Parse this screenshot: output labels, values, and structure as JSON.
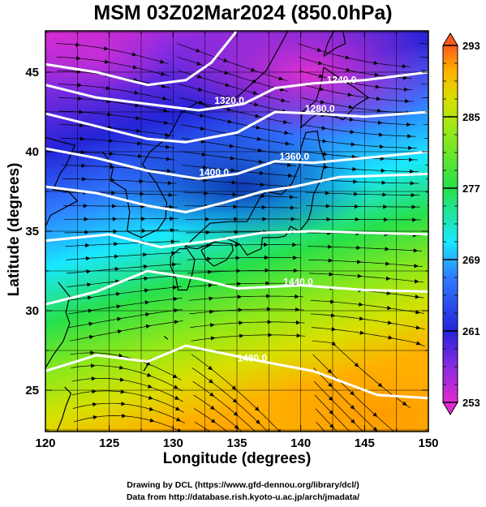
{
  "title": "MSM 03Z02Mar2024 (850.0hPa)",
  "xlabel": "Longitude (degrees)",
  "ylabel": "Latitude  (degrees)",
  "credits": [
    "Drawing by DCL (https://www.gfd-dennou.org/library/dcl/)",
    "Data from http://database.rish.kyoto-u.ac.jp/arch/jmadata/"
  ],
  "map": {
    "lon_range": [
      120,
      150
    ],
    "lat_range": [
      22.4,
      47.6
    ],
    "x_ticks": [
      "120",
      "125",
      "130",
      "135",
      "140",
      "145",
      "150"
    ],
    "y_ticks": [
      "25",
      "30",
      "35",
      "40",
      "45"
    ],
    "grid": true,
    "colorbar": {
      "min": 253,
      "max": 293,
      "tick_labels": [
        "253",
        "261",
        "269",
        "277",
        "285",
        "293"
      ],
      "colors": [
        "#e02bd0",
        "#8a2be0",
        "#2424d8",
        "#2f7bff",
        "#19e8ff",
        "#27e04a",
        "#8fe81a",
        "#d8e000",
        "#ffb000",
        "#ff5a1a"
      ]
    },
    "contour_labels": [
      {
        "text": "1240.0",
        "lon": 143.2,
        "lat": 44.3
      },
      {
        "text": "1280.0",
        "lon": 141.5,
        "lat": 42.5
      },
      {
        "text": "1320.0",
        "lon": 134.4,
        "lat": 43.0
      },
      {
        "text": "1360.0",
        "lon": 139.5,
        "lat": 39.5
      },
      {
        "text": "1400.0",
        "lon": 133.2,
        "lat": 38.5
      },
      {
        "text": "1440.0",
        "lon": 139.8,
        "lat": 31.6
      },
      {
        "text": "1480.0",
        "lon": 136.2,
        "lat": 26.8
      }
    ]
  }
}
